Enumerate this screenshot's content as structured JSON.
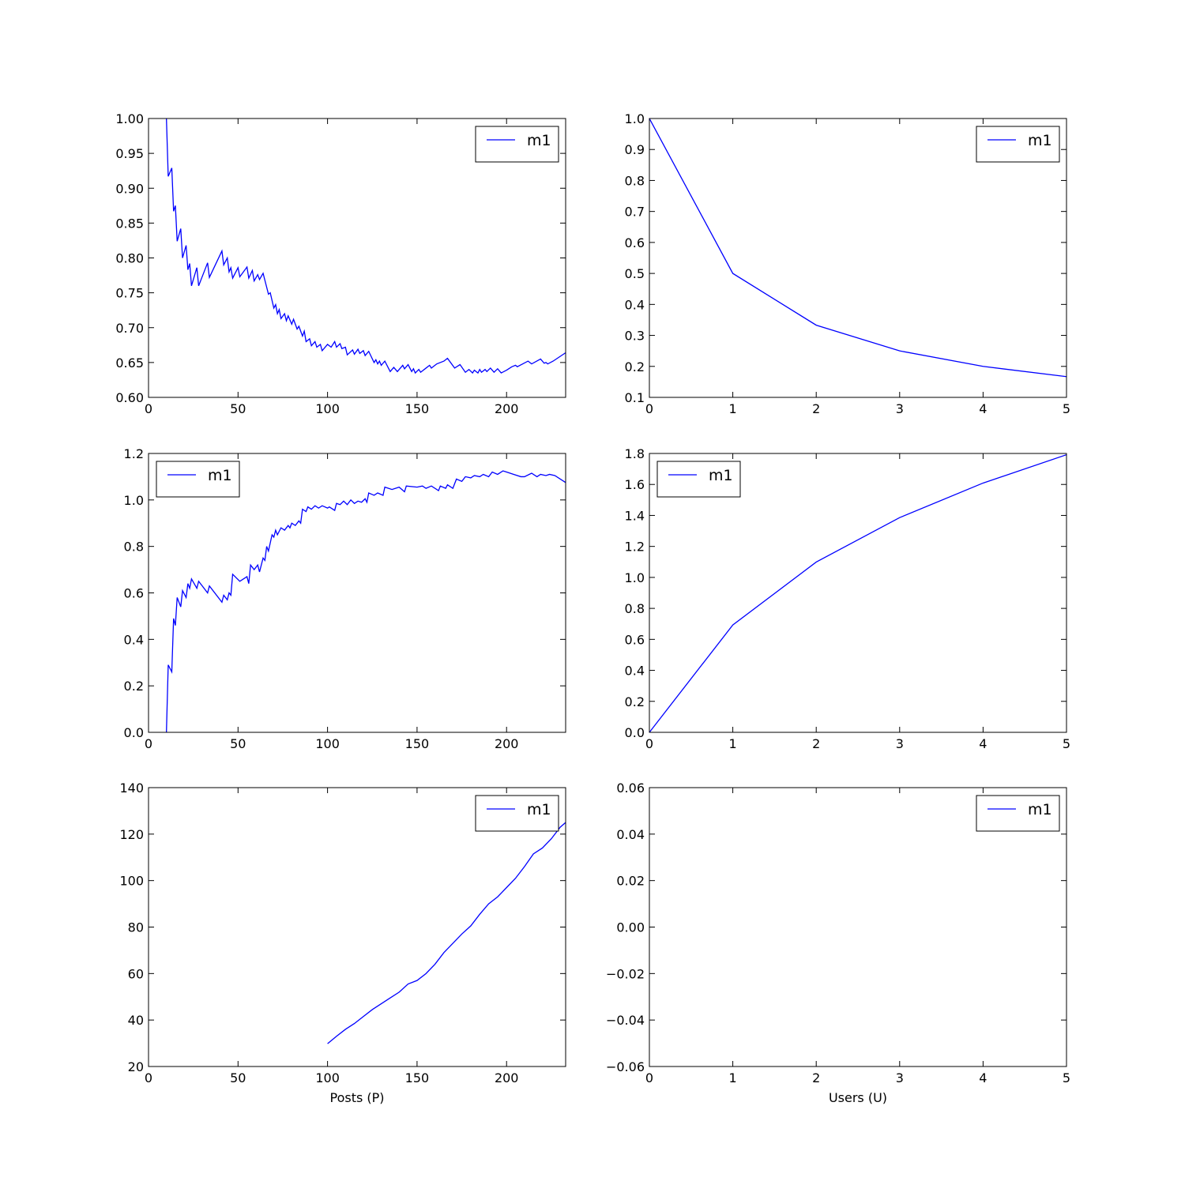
{
  "chart_data": [
    {
      "type": "line",
      "xlim": [
        0,
        233
      ],
      "xticks": [
        0,
        50,
        100,
        150,
        200
      ],
      "ylim": [
        0.6,
        1.0
      ],
      "yticks": [
        {
          "value": 0.6,
          "label": "0.60"
        },
        0.65,
        {
          "value": 0.7,
          "label": "0.70"
        },
        0.75,
        {
          "value": 0.8,
          "label": "0.80"
        },
        0.85,
        {
          "value": 0.9,
          "label": "0.90"
        },
        0.95,
        {
          "value": 1.0,
          "label": "1.00"
        }
      ],
      "legend": "upper right",
      "x": [
        10,
        11,
        13,
        14,
        15,
        16,
        18,
        19,
        21,
        22,
        23,
        24,
        27,
        28,
        33,
        34,
        41,
        42,
        44,
        45,
        46,
        47,
        50,
        51,
        55,
        56,
        58,
        59,
        61,
        62,
        64,
        67,
        68,
        70,
        71,
        72,
        73,
        74,
        76,
        77,
        78,
        80,
        81,
        83,
        84,
        86,
        87,
        88,
        90,
        91,
        93,
        94,
        96,
        97,
        100,
        102,
        104,
        105,
        107,
        108,
        110,
        111,
        114,
        115,
        117,
        118,
        120,
        121,
        123,
        126,
        127,
        128,
        129,
        130,
        132,
        135,
        137,
        139,
        142,
        143,
        145,
        147,
        148,
        149,
        151,
        152,
        155,
        157,
        158,
        161,
        165,
        167,
        171,
        174,
        177,
        179,
        181,
        182,
        184,
        185,
        186,
        188,
        189,
        191,
        193,
        195,
        197,
        200,
        203,
        205,
        206,
        212,
        214,
        219,
        221,
        222,
        223,
        226,
        233
      ],
      "series": [
        {
          "name": "m1",
          "color": "#0000ff",
          "values": [
            1.0,
            0.917,
            0.929,
            0.867,
            0.875,
            0.824,
            0.842,
            0.8,
            0.818,
            0.783,
            0.792,
            0.76,
            0.786,
            0.76,
            0.793,
            0.772,
            0.81,
            0.79,
            0.8,
            0.78,
            0.786,
            0.771,
            0.786,
            0.773,
            0.787,
            0.771,
            0.782,
            0.767,
            0.776,
            0.769,
            0.778,
            0.748,
            0.75,
            0.728,
            0.733,
            0.72,
            0.726,
            0.713,
            0.72,
            0.71,
            0.717,
            0.705,
            0.712,
            0.698,
            0.702,
            0.688,
            0.695,
            0.68,
            0.684,
            0.674,
            0.68,
            0.672,
            0.676,
            0.667,
            0.676,
            0.672,
            0.68,
            0.672,
            0.677,
            0.67,
            0.672,
            0.661,
            0.668,
            0.662,
            0.669,
            0.663,
            0.667,
            0.66,
            0.666,
            0.65,
            0.654,
            0.648,
            0.652,
            0.646,
            0.652,
            0.637,
            0.643,
            0.637,
            0.646,
            0.641,
            0.647,
            0.637,
            0.641,
            0.635,
            0.64,
            0.636,
            0.642,
            0.646,
            0.642,
            0.648,
            0.652,
            0.656,
            0.642,
            0.647,
            0.636,
            0.64,
            0.635,
            0.639,
            0.635,
            0.64,
            0.636,
            0.64,
            0.637,
            0.642,
            0.636,
            0.641,
            0.635,
            0.639,
            0.644,
            0.646,
            0.644,
            0.652,
            0.648,
            0.655,
            0.649,
            0.65,
            0.648,
            0.652,
            0.664
          ]
        }
      ]
    },
    {
      "type": "line",
      "xlim": [
        0,
        5
      ],
      "xticks": [
        0,
        1,
        2,
        3,
        4,
        5
      ],
      "ylim": [
        0.1,
        1.0
      ],
      "yticks": [
        0.1,
        0.2,
        0.3,
        0.4,
        0.5,
        0.6,
        0.7,
        0.8,
        0.9,
        {
          "value": 1.0,
          "label": "1.0"
        }
      ],
      "legend": "upper right",
      "x": [
        0,
        1,
        2,
        3,
        4,
        5
      ],
      "series": [
        {
          "name": "m1",
          "color": "#0000ff",
          "values": [
            1.0,
            0.5,
            0.333,
            0.25,
            0.2,
            0.167
          ]
        }
      ]
    },
    {
      "type": "line",
      "xlim": [
        0,
        233
      ],
      "xticks": [
        0,
        50,
        100,
        150,
        200
      ],
      "ylim": [
        0,
        1.2
      ],
      "yticks": [
        {
          "value": 0,
          "label": "0.0"
        },
        0.2,
        0.4,
        0.6,
        0.8,
        {
          "value": 1.0,
          "label": "1.0"
        },
        1.2
      ],
      "legend": "upper left",
      "x": [
        10,
        11,
        13,
        14,
        15,
        16,
        18,
        19,
        21,
        22,
        23,
        24,
        27,
        28,
        33,
        34,
        41,
        42,
        44,
        45,
        46,
        47,
        51,
        55,
        56,
        57,
        59,
        61,
        62,
        64,
        65,
        66,
        67,
        69,
        70,
        71,
        72,
        74,
        76,
        78,
        79,
        80,
        82,
        84,
        85,
        86,
        88,
        89,
        91,
        93,
        95,
        97,
        100,
        101,
        104,
        105,
        107,
        109,
        111,
        113,
        115,
        117,
        119,
        121,
        122,
        123,
        126,
        128,
        131,
        132,
        136,
        140,
        143,
        144,
        150,
        153,
        155,
        158,
        162,
        163,
        166,
        167,
        170,
        172,
        175,
        177,
        180,
        182,
        185,
        187,
        190,
        192,
        195,
        198,
        200,
        204,
        208,
        210,
        214,
        217,
        219,
        222,
        224,
        227,
        233
      ],
      "series": [
        {
          "name": "m1",
          "color": "#0000ff",
          "values": [
            0,
            0.29,
            0.26,
            0.49,
            0.46,
            0.58,
            0.54,
            0.61,
            0.58,
            0.64,
            0.62,
            0.66,
            0.62,
            0.65,
            0.6,
            0.63,
            0.56,
            0.59,
            0.57,
            0.6,
            0.59,
            0.68,
            0.65,
            0.67,
            0.64,
            0.72,
            0.7,
            0.72,
            0.69,
            0.75,
            0.74,
            0.8,
            0.78,
            0.85,
            0.84,
            0.87,
            0.85,
            0.88,
            0.87,
            0.89,
            0.88,
            0.9,
            0.89,
            0.91,
            0.9,
            0.96,
            0.95,
            0.97,
            0.96,
            0.975,
            0.965,
            0.975,
            0.965,
            0.97,
            0.955,
            0.985,
            0.98,
            0.995,
            0.98,
            1.0,
            0.985,
            0.995,
            0.99,
            1.005,
            0.99,
            1.03,
            1.02,
            1.03,
            1.02,
            1.055,
            1.045,
            1.055,
            1.035,
            1.06,
            1.055,
            1.06,
            1.05,
            1.06,
            1.04,
            1.06,
            1.05,
            1.065,
            1.05,
            1.09,
            1.08,
            1.1,
            1.095,
            1.105,
            1.1,
            1.11,
            1.1,
            1.12,
            1.11,
            1.125,
            1.12,
            1.11,
            1.1,
            1.1,
            1.115,
            1.1,
            1.11,
            1.105,
            1.11,
            1.105,
            1.075
          ]
        }
      ]
    },
    {
      "type": "line",
      "xlim": [
        0,
        5
      ],
      "xticks": [
        0,
        1,
        2,
        3,
        4,
        5
      ],
      "ylim": [
        0,
        1.8
      ],
      "yticks": [
        {
          "value": 0,
          "label": "0.0"
        },
        0.2,
        0.4,
        0.6,
        0.8,
        {
          "value": 1.0,
          "label": "1.0"
        },
        1.2,
        1.4,
        1.6,
        1.8
      ],
      "legend": "upper left",
      "x": [
        0,
        1,
        2,
        3,
        4,
        5
      ],
      "series": [
        {
          "name": "m1",
          "color": "#0000ff",
          "values": [
            0,
            0.693,
            1.099,
            1.386,
            1.609,
            1.792
          ]
        }
      ]
    },
    {
      "type": "line",
      "xlabel": "Posts (P)",
      "xlim": [
        0,
        233
      ],
      "xticks": [
        0,
        50,
        100,
        150,
        200
      ],
      "ylim": [
        20,
        140
      ],
      "yticks": [
        20,
        40,
        60,
        80,
        100,
        120,
        140
      ],
      "legend": "upper right",
      "x": [
        100,
        105,
        110,
        115,
        120,
        125,
        130,
        135,
        140,
        145,
        150,
        155,
        160,
        165,
        170,
        175,
        180,
        185,
        190,
        195,
        200,
        205,
        210,
        215,
        220,
        225,
        230,
        233
      ],
      "series": [
        {
          "name": "m1",
          "color": "#0000ff",
          "values": [
            29.8,
            33,
            36,
            38.5,
            41.5,
            44.5,
            47,
            49.5,
            52,
            55.5,
            57,
            60,
            64,
            69,
            73,
            77,
            80.5,
            85.5,
            90,
            93,
            97,
            101,
            106,
            111.5,
            114,
            118,
            123,
            125
          ]
        }
      ]
    },
    {
      "type": "line",
      "xlabel": "Users (U)",
      "xlim": [
        0,
        5
      ],
      "xticks": [
        0,
        1,
        2,
        3,
        4,
        5
      ],
      "ylim": [
        -0.06,
        0.06
      ],
      "yticks": [
        {
          "value": -0.06,
          "label": "−0.06"
        },
        {
          "value": -0.04,
          "label": "−0.04"
        },
        {
          "value": -0.02,
          "label": "−0.02"
        },
        {
          "value": 0,
          "label": "0.00"
        },
        0.02,
        0.04,
        0.06
      ],
      "legend": "upper right",
      "x": [],
      "series": [
        {
          "name": "m1",
          "color": "#0000ff",
          "values": []
        }
      ]
    }
  ]
}
